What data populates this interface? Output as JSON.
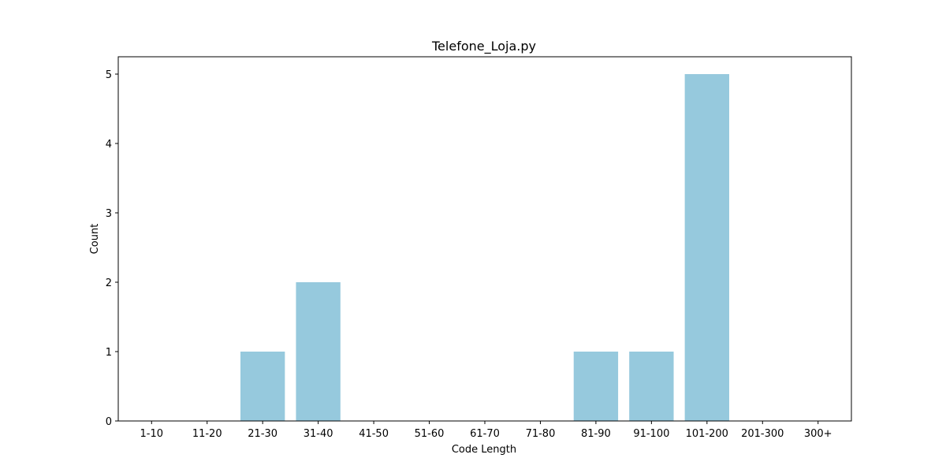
{
  "chart_data": {
    "type": "bar",
    "title": "Telefone_Loja.py",
    "xlabel": "Code Length",
    "ylabel": "Count",
    "categories": [
      "1-10",
      "11-20",
      "21-30",
      "31-40",
      "41-50",
      "51-60",
      "61-70",
      "71-80",
      "81-90",
      "91-100",
      "101-200",
      "201-300",
      "300+"
    ],
    "values": [
      0,
      0,
      1,
      2,
      0,
      0,
      0,
      0,
      1,
      1,
      5,
      0,
      0
    ],
    "ylim": [
      0,
      5.25
    ],
    "yticks": [
      0,
      1,
      2,
      3,
      4,
      5
    ],
    "bar_color": "#96c9dd",
    "grid": false
  }
}
